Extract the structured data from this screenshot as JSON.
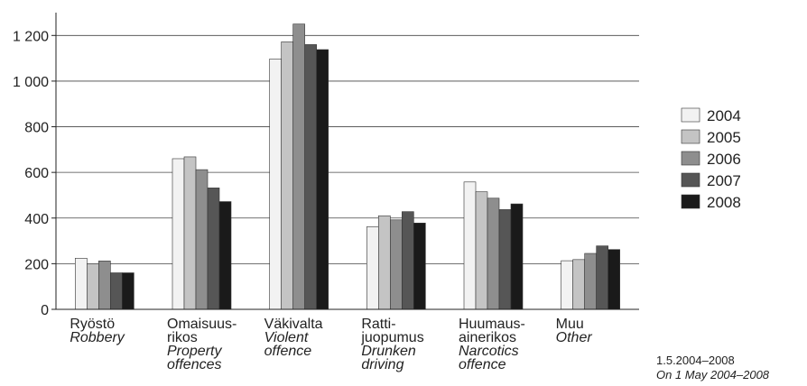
{
  "chart_data": {
    "type": "bar",
    "categories": [
      {
        "fi": "Ryöstö",
        "en": "Robbery"
      },
      {
        "fi": "Omaisuus-\nrikos",
        "en": "Property\noffences"
      },
      {
        "fi": "Väkivalta",
        "en": "Violent\noffence"
      },
      {
        "fi": "Ratti-\njuopumus",
        "en": "Drunken\ndriving"
      },
      {
        "fi": "Huumaus-\nainerikos",
        "en": "Narcotics\noffence"
      },
      {
        "fi": "Muu",
        "en": "Other"
      }
    ],
    "series": [
      {
        "name": "2004",
        "color": "#f2f2f2",
        "values": [
          224,
          660,
          1097,
          362,
          558,
          213
        ]
      },
      {
        "name": "2005",
        "color": "#c4c4c4",
        "values": [
          200,
          668,
          1172,
          410,
          515,
          218
        ]
      },
      {
        "name": "2006",
        "color": "#8e8e8e",
        "values": [
          212,
          612,
          1250,
          392,
          487,
          245
        ]
      },
      {
        "name": "2007",
        "color": "#565656",
        "values": [
          160,
          532,
          1160,
          428,
          437,
          278
        ]
      },
      {
        "name": "2008",
        "color": "#1a1a1a",
        "values": [
          160,
          472,
          1138,
          378,
          462,
          262
        ]
      }
    ],
    "ylim": [
      0,
      1300
    ],
    "yticks": [
      0,
      200,
      400,
      600,
      800,
      {
        "value": 1000,
        "label": "1 000"
      },
      {
        "value": 1200,
        "label": "1 200"
      }
    ],
    "grid": true,
    "legend": "right",
    "footnote": {
      "fi": "1.5.2004–2008",
      "en": "On 1 May 2004–2008"
    }
  }
}
